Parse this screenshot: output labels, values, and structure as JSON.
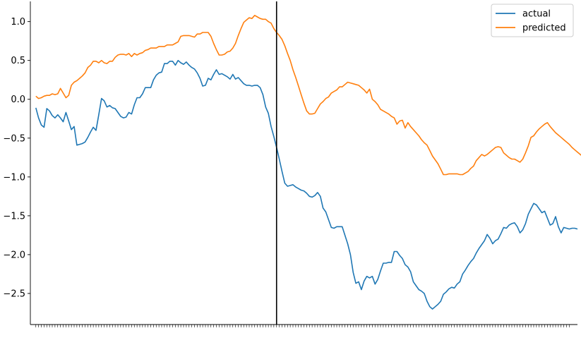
{
  "chart_data": {
    "type": "line",
    "title": "",
    "xlabel": "",
    "ylabel": "",
    "n_points": 196,
    "split_index": 88,
    "x_range": [
      -2,
      198
    ],
    "ylim": [
      -2.9,
      1.26
    ],
    "yticks": [
      1.0,
      0.5,
      0.0,
      -0.5,
      -1.0,
      -1.5,
      -2.0,
      -2.5
    ],
    "ytick_labels": [
      "1.0",
      "0.5",
      "0.0",
      "−0.5",
      "−1.0",
      "−1.5",
      "−2.0",
      "−2.5"
    ],
    "grid": false,
    "legend_position": "top-right",
    "series": [
      {
        "name": "actual",
        "color": "#1f77b4",
        "values": [
          -0.11,
          -0.24,
          -0.33,
          -0.36,
          -0.12,
          -0.15,
          -0.21,
          -0.24,
          -0.2,
          -0.24,
          -0.29,
          -0.17,
          -0.28,
          -0.39,
          -0.35,
          -0.59,
          -0.58,
          -0.57,
          -0.55,
          -0.49,
          -0.42,
          -0.36,
          -0.4,
          -0.2,
          0.01,
          -0.02,
          -0.1,
          -0.08,
          -0.11,
          -0.12,
          -0.17,
          -0.22,
          -0.24,
          -0.23,
          -0.17,
          -0.19,
          -0.07,
          0.02,
          0.02,
          0.07,
          0.15,
          0.15,
          0.15,
          0.25,
          0.31,
          0.34,
          0.35,
          0.46,
          0.46,
          0.49,
          0.49,
          0.44,
          0.5,
          0.47,
          0.45,
          0.48,
          0.44,
          0.41,
          0.39,
          0.34,
          0.27,
          0.17,
          0.18,
          0.27,
          0.25,
          0.32,
          0.38,
          0.32,
          0.33,
          0.31,
          0.29,
          0.26,
          0.32,
          0.26,
          0.28,
          0.24,
          0.2,
          0.18,
          0.18,
          0.17,
          0.18,
          0.18,
          0.15,
          0.06,
          -0.1,
          -0.18,
          -0.35,
          -0.48,
          -0.62,
          -0.77,
          -0.93,
          -1.08,
          -1.12,
          -1.11,
          -1.1,
          -1.13,
          -1.15,
          -1.17,
          -1.18,
          -1.21,
          -1.25,
          -1.26,
          -1.24,
          -1.2,
          -1.25,
          -1.4,
          -1.45,
          -1.55,
          -1.65,
          -1.66,
          -1.64,
          -1.64,
          -1.64,
          -1.75,
          -1.86,
          -2.0,
          -2.23,
          -2.37,
          -2.35,
          -2.45,
          -2.34,
          -2.28,
          -2.3,
          -2.28,
          -2.38,
          -2.32,
          -2.21,
          -2.11,
          -2.11,
          -2.1,
          -2.1,
          -1.96,
          -1.96,
          -2.01,
          -2.05,
          -2.13,
          -2.16,
          -2.22,
          -2.35,
          -2.4,
          -2.45,
          -2.47,
          -2.5,
          -2.6,
          -2.67,
          -2.7,
          -2.67,
          -2.64,
          -2.6,
          -2.51,
          -2.48,
          -2.44,
          -2.42,
          -2.43,
          -2.38,
          -2.35,
          -2.25,
          -2.2,
          -2.14,
          -2.09,
          -2.05,
          -1.98,
          -1.92,
          -1.87,
          -1.82,
          -1.74,
          -1.79,
          -1.86,
          -1.82,
          -1.8,
          -1.73,
          -1.65,
          -1.66,
          -1.62,
          -1.6,
          -1.59,
          -1.64,
          -1.72,
          -1.68,
          -1.6,
          -1.48,
          -1.41,
          -1.34,
          -1.36,
          -1.41,
          -1.46,
          -1.44,
          -1.53,
          -1.62,
          -1.6,
          -1.51,
          -1.64,
          -1.72,
          -1.65,
          -1.66,
          -1.67,
          -1.66,
          -1.66,
          -1.67
        ]
      },
      {
        "name": "predicted",
        "color": "#ff7f0e",
        "values": [
          0.04,
          0.01,
          0.02,
          0.04,
          0.05,
          0.05,
          0.07,
          0.06,
          0.07,
          0.14,
          0.08,
          0.02,
          0.05,
          0.18,
          0.22,
          0.24,
          0.27,
          0.3,
          0.34,
          0.41,
          0.44,
          0.49,
          0.49,
          0.47,
          0.5,
          0.47,
          0.46,
          0.49,
          0.49,
          0.54,
          0.57,
          0.58,
          0.58,
          0.57,
          0.59,
          0.55,
          0.59,
          0.57,
          0.59,
          0.6,
          0.63,
          0.64,
          0.66,
          0.66,
          0.66,
          0.68,
          0.68,
          0.68,
          0.7,
          0.7,
          0.7,
          0.72,
          0.74,
          0.81,
          0.82,
          0.82,
          0.82,
          0.81,
          0.8,
          0.84,
          0.84,
          0.86,
          0.86,
          0.86,
          0.81,
          0.72,
          0.64,
          0.57,
          0.57,
          0.58,
          0.61,
          0.62,
          0.66,
          0.72,
          0.82,
          0.91,
          0.99,
          1.02,
          1.05,
          1.04,
          1.08,
          1.06,
          1.04,
          1.03,
          1.03,
          1.0,
          0.98,
          0.91,
          0.86,
          0.82,
          0.77,
          0.69,
          0.59,
          0.5,
          0.38,
          0.28,
          0.17,
          0.06,
          -0.05,
          -0.15,
          -0.19,
          -0.19,
          -0.18,
          -0.12,
          -0.06,
          -0.03,
          0.01,
          0.03,
          0.08,
          0.1,
          0.12,
          0.16,
          0.16,
          0.19,
          0.22,
          0.21,
          0.2,
          0.19,
          0.18,
          0.15,
          0.12,
          0.08,
          0.13,
          0.0,
          -0.03,
          -0.07,
          -0.13,
          -0.15,
          -0.17,
          -0.19,
          -0.22,
          -0.24,
          -0.32,
          -0.28,
          -0.27,
          -0.37,
          -0.3,
          -0.35,
          -0.39,
          -0.43,
          -0.47,
          -0.52,
          -0.56,
          -0.59,
          -0.66,
          -0.73,
          -0.78,
          -0.83,
          -0.9,
          -0.97,
          -0.97,
          -0.96,
          -0.96,
          -0.96,
          -0.96,
          -0.97,
          -0.97,
          -0.95,
          -0.93,
          -0.89,
          -0.86,
          -0.79,
          -0.75,
          -0.71,
          -0.73,
          -0.71,
          -0.68,
          -0.65,
          -0.62,
          -0.61,
          -0.62,
          -0.69,
          -0.72,
          -0.75,
          -0.77,
          -0.77,
          -0.79,
          -0.81,
          -0.77,
          -0.69,
          -0.6,
          -0.49,
          -0.47,
          -0.42,
          -0.38,
          -0.35,
          -0.32,
          -0.3,
          -0.35,
          -0.39,
          -0.43,
          -0.46,
          -0.49,
          -0.52,
          -0.55,
          -0.58,
          -0.62,
          -0.65,
          -0.68,
          -0.71,
          -0.74,
          -0.77
        ]
      }
    ]
  }
}
